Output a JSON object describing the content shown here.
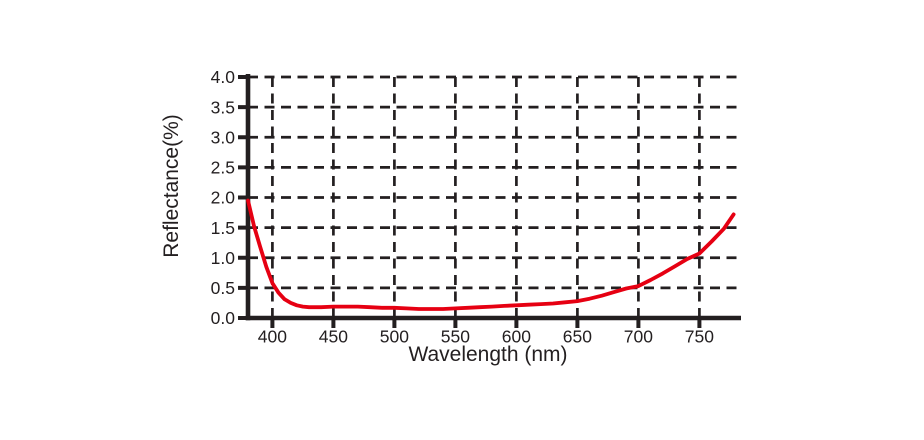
{
  "chart_data": {
    "type": "line",
    "title": "",
    "xlabel": "Wavelength (nm)",
    "ylabel": "Reflectance(%)",
    "xlim": [
      380,
      780
    ],
    "ylim": [
      0.0,
      4.0
    ],
    "x_ticks": [
      "400",
      "450",
      "500",
      "550",
      "600",
      "650",
      "700",
      "750"
    ],
    "y_ticks": [
      "0.0",
      "0.5",
      "1.0",
      "1.5",
      "2.0",
      "2.5",
      "3.0",
      "3.5",
      "4.0"
    ],
    "grid": "dashed-both-axes",
    "legend": "none",
    "series": [
      {
        "name": "reflectance-curve",
        "color": "#e60012",
        "x": [
          380,
          385,
          390,
          395,
          400,
          405,
          410,
          415,
          420,
          425,
          430,
          440,
          450,
          460,
          470,
          480,
          490,
          500,
          510,
          520,
          530,
          540,
          550,
          560,
          570,
          580,
          590,
          600,
          610,
          620,
          630,
          640,
          650,
          660,
          670,
          680,
          690,
          700,
          710,
          720,
          730,
          740,
          750,
          760,
          770,
          778
        ],
        "y": [
          1.95,
          1.52,
          1.18,
          0.85,
          0.58,
          0.42,
          0.31,
          0.25,
          0.21,
          0.19,
          0.18,
          0.18,
          0.19,
          0.19,
          0.19,
          0.18,
          0.17,
          0.17,
          0.16,
          0.15,
          0.15,
          0.15,
          0.16,
          0.17,
          0.18,
          0.19,
          0.2,
          0.21,
          0.22,
          0.23,
          0.24,
          0.26,
          0.28,
          0.32,
          0.37,
          0.43,
          0.49,
          0.53,
          0.63,
          0.74,
          0.86,
          0.98,
          1.07,
          1.27,
          1.48,
          1.72
        ]
      }
    ]
  },
  "colors": {
    "curve": "#e60012",
    "axis": "#231f20",
    "grid": "#231f20",
    "text": "#231f20",
    "background": "#ffffff"
  }
}
